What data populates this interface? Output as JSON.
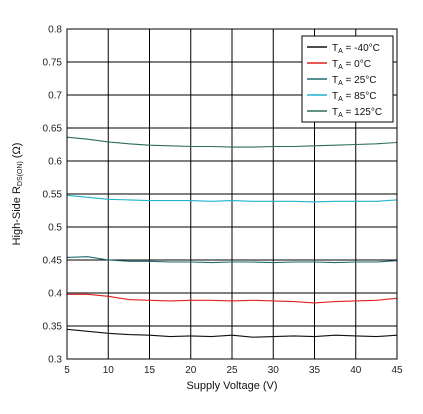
{
  "chart_data": {
    "type": "line",
    "title": "",
    "xlabel": "Supply Voltage (V)",
    "ylabel": {
      "prefix": "High-Side R",
      "subscript": "DS(ON)",
      "suffix": " (Ω)"
    },
    "xlim": [
      5,
      45
    ],
    "ylim": [
      0.3,
      0.8
    ],
    "xticks": [
      5,
      10,
      15,
      20,
      25,
      30,
      35,
      40,
      45
    ],
    "yticks": [
      0.3,
      0.35,
      0.4,
      0.45,
      0.5,
      0.55,
      0.6,
      0.65,
      0.7,
      0.75,
      0.8
    ],
    "grid": true,
    "legend_position": "top-right",
    "x": [
      5,
      7.5,
      10,
      12.5,
      15,
      17.5,
      20,
      22.5,
      25,
      27.5,
      30,
      32.5,
      35,
      37.5,
      40,
      42.5,
      45
    ],
    "series": [
      {
        "name": "-40°C",
        "name_prefix": "T",
        "name_sub": "A",
        "name_suffix": " = -40°C",
        "color": "#111111",
        "values": [
          0.345,
          0.342,
          0.339,
          0.337,
          0.336,
          0.334,
          0.335,
          0.334,
          0.336,
          0.333,
          0.334,
          0.335,
          0.334,
          0.336,
          0.335,
          0.334,
          0.336
        ]
      },
      {
        "name": "0°C",
        "name_prefix": "T",
        "name_sub": "A",
        "name_suffix": " = 0°C",
        "color": "#e0201f",
        "values": [
          0.398,
          0.398,
          0.395,
          0.39,
          0.389,
          0.388,
          0.389,
          0.389,
          0.388,
          0.389,
          0.388,
          0.387,
          0.385,
          0.387,
          0.388,
          0.389,
          0.392
        ]
      },
      {
        "name": "25°C",
        "name_prefix": "T",
        "name_sub": "A",
        "name_suffix": " = 25°C",
        "color": "#1f6a70",
        "values": [
          0.454,
          0.455,
          0.45,
          0.448,
          0.448,
          0.447,
          0.447,
          0.446,
          0.447,
          0.447,
          0.446,
          0.447,
          0.447,
          0.446,
          0.447,
          0.447,
          0.449
        ]
      },
      {
        "name": "85°C",
        "name_prefix": "T",
        "name_sub": "A",
        "name_suffix": " = 85°C",
        "color": "#1fb4cc",
        "values": [
          0.548,
          0.545,
          0.542,
          0.541,
          0.54,
          0.54,
          0.54,
          0.539,
          0.54,
          0.539,
          0.539,
          0.539,
          0.538,
          0.539,
          0.539,
          0.539,
          0.541
        ]
      },
      {
        "name": "125°C",
        "name_prefix": "T",
        "name_sub": "A",
        "name_suffix": " = 125°C",
        "color": "#2d6e55",
        "values": [
          0.636,
          0.633,
          0.629,
          0.626,
          0.624,
          0.623,
          0.622,
          0.622,
          0.621,
          0.621,
          0.622,
          0.622,
          0.623,
          0.624,
          0.625,
          0.626,
          0.628
        ]
      }
    ]
  }
}
